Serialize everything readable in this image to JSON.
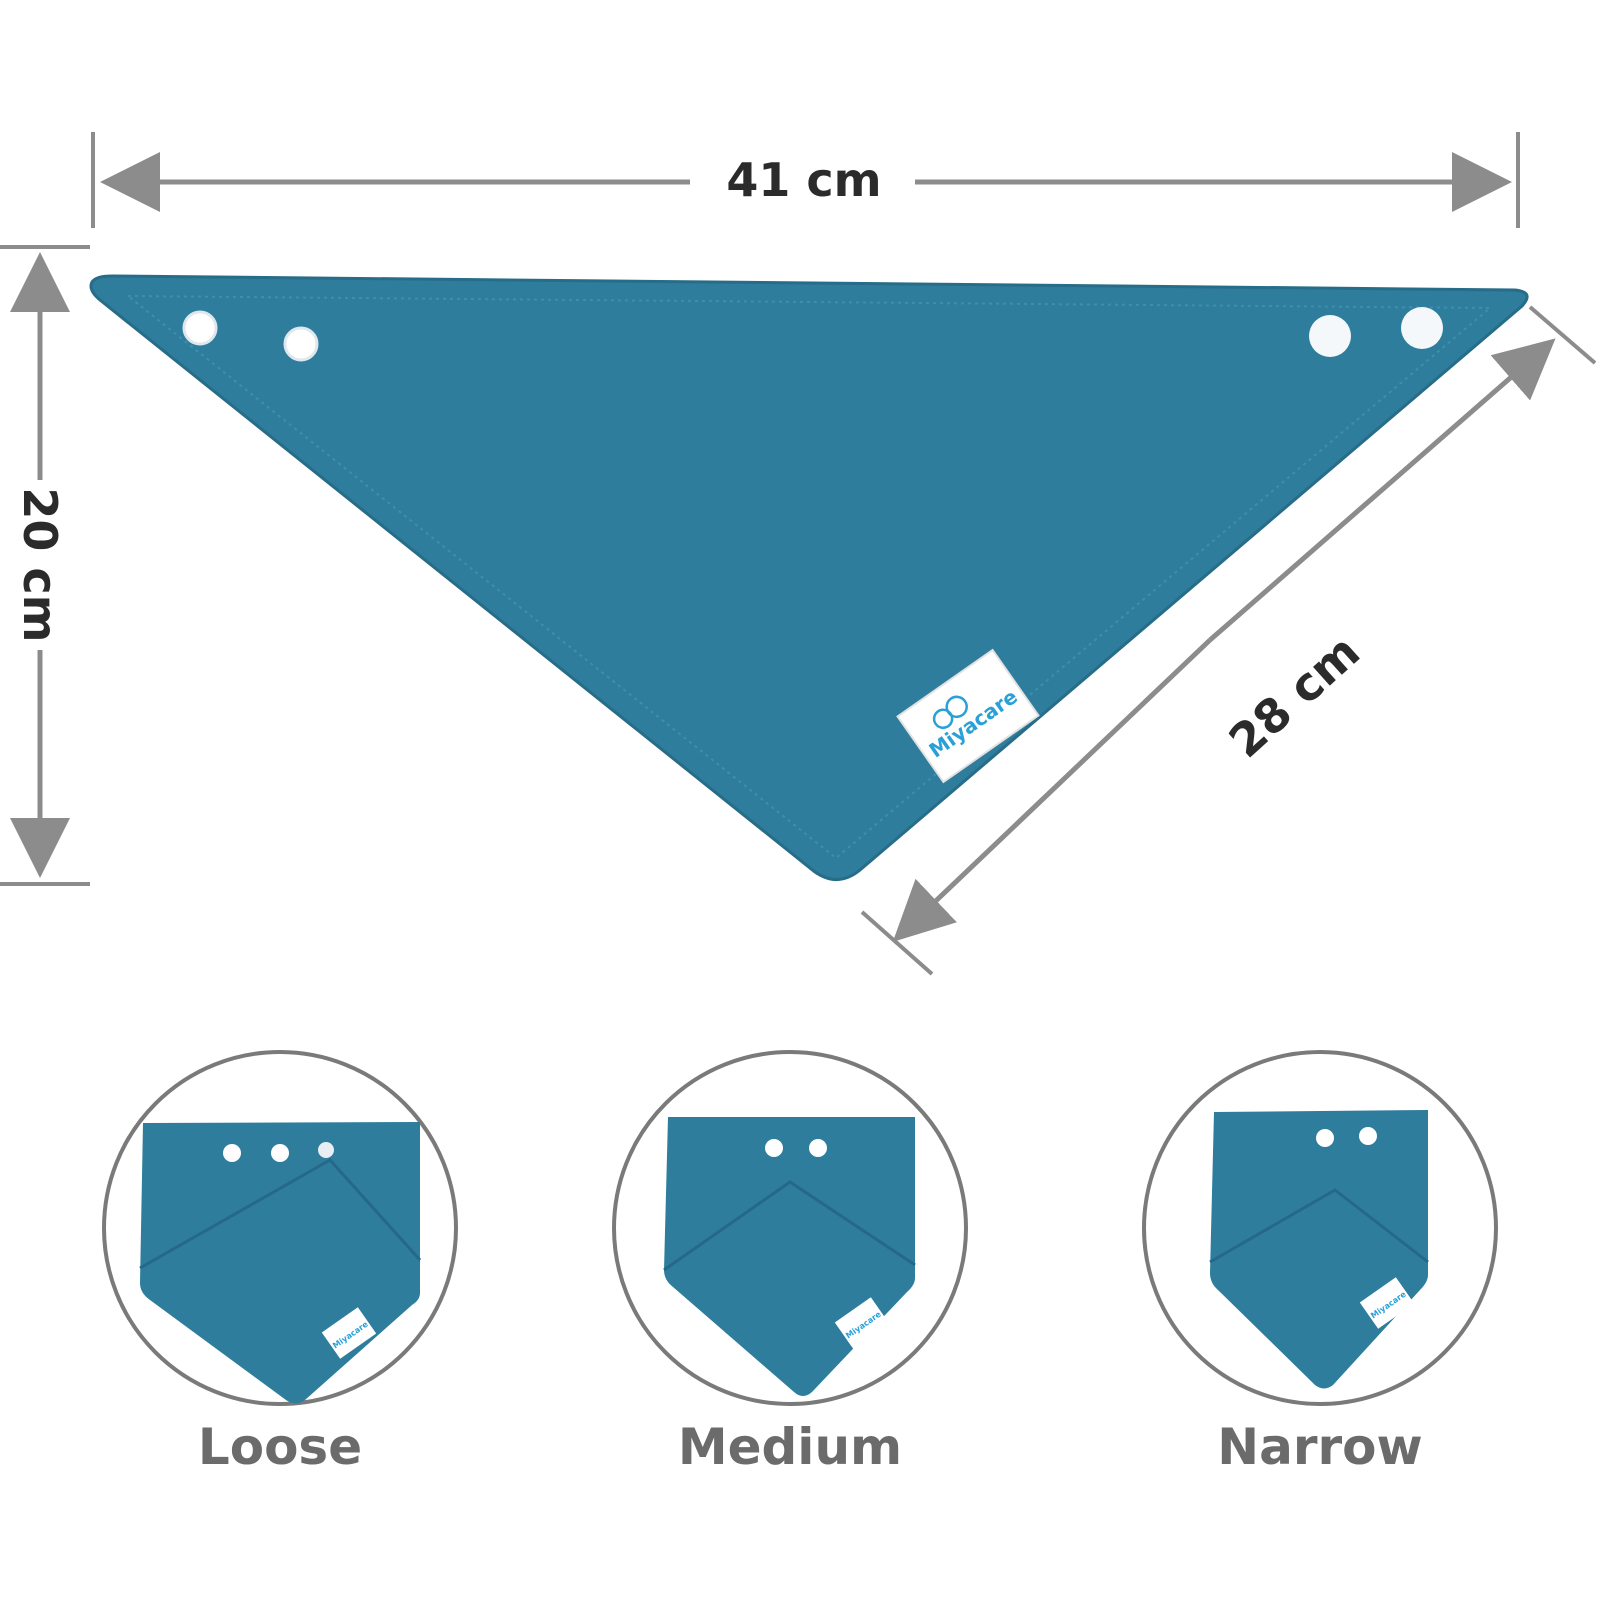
{
  "colors": {
    "bib": "#2e7d9c",
    "bib_edge": "#276c88",
    "stitch": "#3c8fae",
    "dimension_line": "#8c8c8c",
    "dimension_text": "#2b2b2b",
    "fit_text": "#6b6b6b",
    "circle_border": "#7a7a7a",
    "label_bg": "#ffffff",
    "brand": "#2aa0d8",
    "snap": "#ffffff"
  },
  "dimensions": {
    "width_label": "41 cm",
    "height_label": "20 cm",
    "side_label": "28 cm"
  },
  "brand": {
    "name": "Miyacare"
  },
  "fits": [
    {
      "label": "Loose"
    },
    {
      "label": "Medium"
    },
    {
      "label": "Narrow"
    }
  ]
}
